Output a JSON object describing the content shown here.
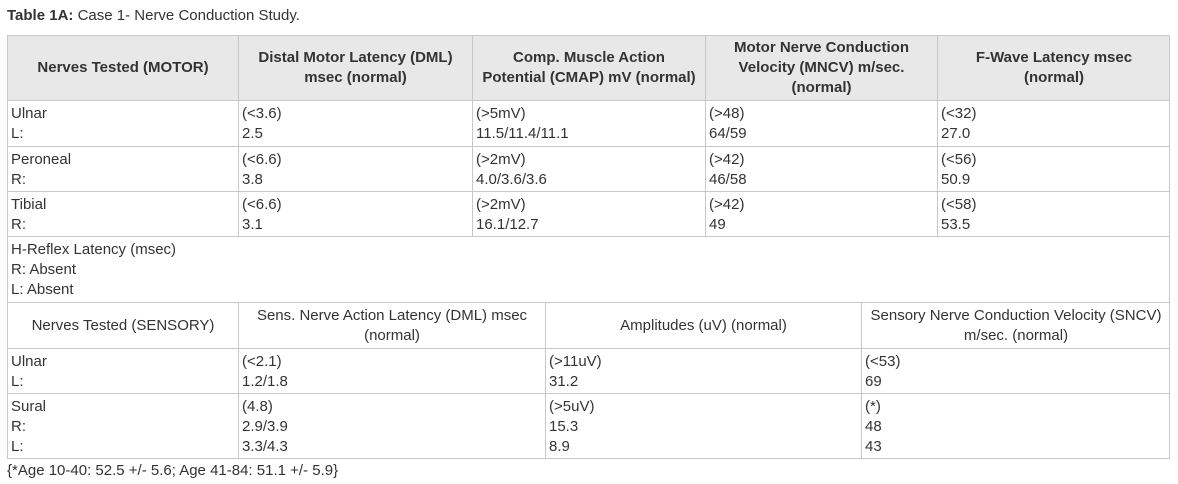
{
  "caption": {
    "label": "Table 1A:",
    "text": " Case 1- Nerve Conduction Study."
  },
  "motor": {
    "headers": [
      "Nerves Tested (MOTOR)",
      "Distal Motor Latency (DML) msec (normal)",
      "Comp. Muscle Action Potential (CMAP) mV (normal)",
      "Motor Nerve Conduction Velocity (MNCV) m/sec. (normal)",
      "F-Wave Latency msec (normal)"
    ],
    "rows": [
      {
        "nerve": [
          "Ulnar",
          "L:"
        ],
        "dml": [
          "(<3.6)",
          "2.5"
        ],
        "cmap": [
          "(>5mV)",
          "11.5/11.4/11.1"
        ],
        "mncv": [
          "(>48)",
          "64/59"
        ],
        "fwave": [
          "(<32)",
          "27.0"
        ]
      },
      {
        "nerve": [
          "Peroneal",
          "R:"
        ],
        "dml": [
          "(<6.6)",
          "3.8"
        ],
        "cmap": [
          "(>2mV)",
          "4.0/3.6/3.6"
        ],
        "mncv": [
          "(>42)",
          "46/58"
        ],
        "fwave": [
          "(<56)",
          "50.9"
        ]
      },
      {
        "nerve": [
          "Tibial",
          "R:"
        ],
        "dml": [
          "(<6.6)",
          "3.1"
        ],
        "cmap": [
          "(>2mV)",
          "16.1/12.7"
        ],
        "mncv": [
          "(>42)",
          "49"
        ],
        "fwave": [
          "(<58)",
          "53.5"
        ]
      }
    ]
  },
  "hreflex": [
    "H-Reflex Latency (msec)",
    "R:  Absent",
    "L:  Absent"
  ],
  "sensory": {
    "headers": [
      "Nerves Tested (SENSORY)",
      "Sens. Nerve Action Latency (DML) msec (normal)",
      "Amplitudes (uV) (normal)",
      "Sensory Nerve Conduction Velocity (SNCV) m/sec. (normal)"
    ],
    "rows": [
      {
        "nerve": [
          "Ulnar",
          "L:"
        ],
        "latency": [
          "(<2.1)",
          "1.2/1.8"
        ],
        "amp": [
          "(>11uV)",
          "31.2"
        ],
        "sncv": [
          "(<53)",
          "69"
        ]
      },
      {
        "nerve": [
          "Sural",
          "R:",
          "L:"
        ],
        "latency": [
          "(4.8)",
          "2.9/3.9",
          "3.3/4.3"
        ],
        "amp": [
          "(>5uV)",
          "15.3",
          "8.9"
        ],
        "sncv": [
          "(*)",
          "48",
          "43"
        ]
      }
    ]
  },
  "footnote": "{*Age 10-40: 52.5 +/- 5.6; Age 41-84:  51.1 +/- 5.9}"
}
